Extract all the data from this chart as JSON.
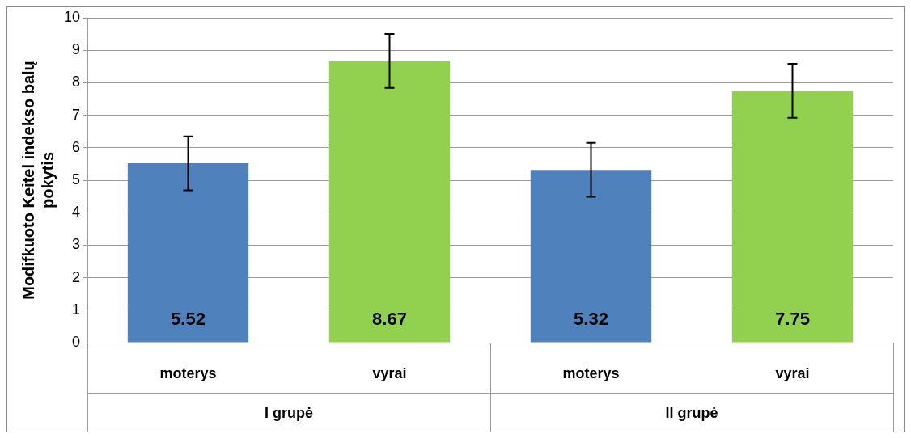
{
  "chart_data": {
    "type": "bar",
    "ylabel": "Modifkuoto Keitel indekso balų pokytis",
    "categories": [
      "moterys",
      "vyrai",
      "moterys",
      "vyrai"
    ],
    "values": [
      5.52,
      8.67,
      5.32,
      7.75
    ],
    "colors": [
      "#4f81bd",
      "#92d050",
      "#4f81bd",
      "#92d050"
    ],
    "errors": [
      0.83,
      0.83,
      0.83,
      0.83
    ],
    "data_labels": true,
    "annotations": [
      "I grupė",
      "II grupė"
    ],
    "ylim": [
      0,
      10
    ],
    "yticks": [
      0,
      1,
      2,
      3,
      4,
      5,
      6,
      7,
      8,
      9,
      10
    ],
    "grid": "y",
    "legend": false
  }
}
